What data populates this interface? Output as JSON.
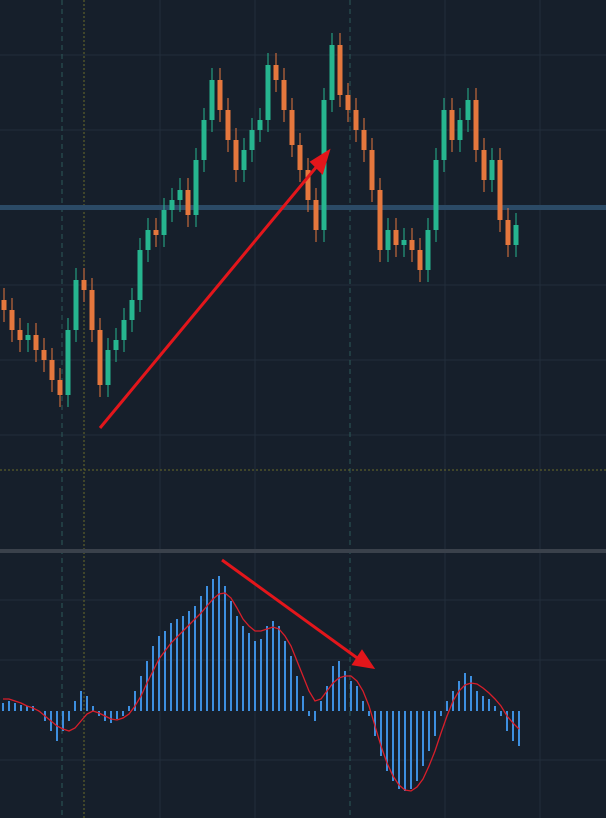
{
  "chart_data": [
    {
      "type": "candlestick",
      "ylim": [
        0,
        470
      ],
      "up_color": "#26b58f",
      "down_color": "#e5773d",
      "open": [
        170,
        160,
        140,
        130,
        135,
        120,
        110,
        90,
        75,
        140,
        190,
        180,
        140,
        85,
        120,
        130,
        150,
        170,
        220,
        240,
        235,
        260,
        270,
        280,
        255,
        310,
        350,
        390,
        360,
        330,
        300,
        320,
        340,
        350,
        405,
        390,
        360,
        325,
        300,
        270,
        240,
        370,
        425,
        375,
        360,
        340,
        320,
        280,
        220,
        240,
        225,
        230,
        220,
        200,
        240,
        310,
        360,
        330,
        350,
        370,
        320,
        290,
        310,
        250,
        225
      ],
      "high": [
        182,
        172,
        152,
        147,
        147,
        132,
        122,
        102,
        152,
        202,
        202,
        192,
        152,
        132,
        142,
        162,
        182,
        232,
        252,
        252,
        272,
        282,
        292,
        292,
        322,
        362,
        402,
        402,
        372,
        342,
        332,
        352,
        362,
        417,
        417,
        402,
        372,
        337,
        312,
        282,
        382,
        437,
        437,
        387,
        372,
        352,
        332,
        292,
        252,
        252,
        242,
        242,
        232,
        252,
        322,
        372,
        372,
        362,
        382,
        382,
        332,
        322,
        322,
        262,
        257
      ],
      "low": [
        148,
        128,
        118,
        118,
        108,
        98,
        78,
        63,
        63,
        128,
        168,
        128,
        73,
        73,
        108,
        118,
        138,
        158,
        208,
        223,
        223,
        248,
        258,
        243,
        243,
        298,
        338,
        348,
        318,
        288,
        288,
        308,
        328,
        338,
        378,
        348,
        313,
        288,
        258,
        228,
        228,
        358,
        363,
        348,
        328,
        308,
        268,
        208,
        208,
        213,
        213,
        208,
        188,
        188,
        228,
        298,
        318,
        318,
        338,
        308,
        278,
        278,
        238,
        213,
        213
      ],
      "close": [
        160,
        140,
        130,
        135,
        120,
        110,
        90,
        75,
        140,
        190,
        180,
        140,
        85,
        120,
        130,
        150,
        170,
        220,
        240,
        235,
        260,
        270,
        280,
        255,
        310,
        350,
        390,
        360,
        330,
        300,
        320,
        340,
        350,
        405,
        390,
        360,
        325,
        300,
        270,
        240,
        370,
        425,
        375,
        360,
        340,
        320,
        280,
        220,
        240,
        225,
        230,
        220,
        200,
        240,
        310,
        360,
        330,
        350,
        370,
        320,
        290,
        310,
        250,
        225,
        245
      ]
    },
    {
      "type": "bar",
      "ylim": [
        -107,
        156
      ],
      "color": "#3d8fe0",
      "line_color": "#d81e2a",
      "values": [
        8,
        10,
        8,
        6,
        5,
        5,
        0,
        -10,
        -20,
        -30,
        -20,
        -10,
        10,
        20,
        15,
        5,
        -5,
        -10,
        -12,
        -8,
        -5,
        5,
        20,
        35,
        50,
        65,
        75,
        80,
        88,
        92,
        95,
        100,
        105,
        115,
        125,
        132,
        135,
        125,
        110,
        95,
        85,
        78,
        70,
        72,
        85,
        90,
        85,
        70,
        55,
        35,
        15,
        -5,
        -10,
        10,
        25,
        45,
        50,
        40,
        30,
        25,
        10,
        -5,
        -25,
        -45,
        -60,
        -70,
        -78,
        -80,
        -78,
        -70,
        -55,
        -40,
        -25,
        -5,
        10,
        20,
        30,
        38,
        35,
        20,
        15,
        12,
        5,
        -5,
        -20,
        -30,
        -35
      ],
      "line_values": [
        12,
        12,
        10,
        8,
        5,
        3,
        0,
        -5,
        -10,
        -15,
        -18,
        -20,
        -17,
        -10,
        -3,
        0,
        -2,
        -5,
        -8,
        -9,
        -7,
        -3,
        5,
        15,
        28,
        40,
        52,
        60,
        68,
        74,
        80,
        86,
        92,
        98,
        105,
        112,
        117,
        118,
        113,
        103,
        92,
        85,
        80,
        80,
        82,
        84,
        82,
        75,
        65,
        50,
        35,
        20,
        10,
        12,
        20,
        28,
        33,
        35,
        35,
        30,
        20,
        5,
        -15,
        -35,
        -52,
        -65,
        -74,
        -79,
        -80,
        -76,
        -68,
        -55,
        -40,
        -22,
        -5,
        10,
        20,
        26,
        28,
        27,
        23,
        18,
        12,
        5,
        -5,
        -12,
        -18
      ]
    }
  ]
}
